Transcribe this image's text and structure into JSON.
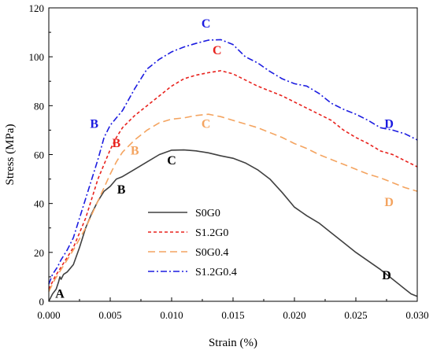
{
  "chart_data": {
    "type": "line",
    "title": "",
    "xlabel": "Strain (%)",
    "ylabel": "Stress (MPa)",
    "xlim": [
      0,
      0.03
    ],
    "ylim": [
      0,
      120
    ],
    "xticks": [
      0.0,
      0.005,
      0.01,
      0.015,
      0.02,
      0.025,
      0.03
    ],
    "xtick_labels": [
      "0.000",
      "0.005",
      "0.010",
      "0.015",
      "0.020",
      "0.025",
      "0.030"
    ],
    "yticks": [
      0,
      20,
      40,
      60,
      80,
      100,
      120
    ],
    "ytick_labels": [
      "0",
      "20",
      "40",
      "60",
      "80",
      "100",
      "120"
    ],
    "grid": false,
    "legend_position": "bottom-center",
    "series": [
      {
        "name": "S0G0",
        "color": "#404040",
        "dash": "solid",
        "points": [
          [
            0,
            0
          ],
          [
            0.0003,
            3
          ],
          [
            0.0006,
            5
          ],
          [
            0.0008,
            8
          ],
          [
            0.0009,
            10
          ],
          [
            0.001,
            9
          ],
          [
            0.0012,
            11
          ],
          [
            0.0015,
            12
          ],
          [
            0.002,
            15
          ],
          [
            0.0025,
            22
          ],
          [
            0.003,
            30
          ],
          [
            0.0035,
            36
          ],
          [
            0.004,
            41
          ],
          [
            0.0045,
            45
          ],
          [
            0.005,
            47
          ],
          [
            0.0055,
            50
          ],
          [
            0.006,
            51
          ],
          [
            0.007,
            54
          ],
          [
            0.008,
            57
          ],
          [
            0.009,
            60
          ],
          [
            0.01,
            61.8
          ],
          [
            0.011,
            61.9
          ],
          [
            0.012,
            61.5
          ],
          [
            0.013,
            60.7
          ],
          [
            0.014,
            59.5
          ],
          [
            0.015,
            58.5
          ],
          [
            0.016,
            56.6
          ],
          [
            0.017,
            53.8
          ],
          [
            0.018,
            50
          ],
          [
            0.019,
            44.5
          ],
          [
            0.02,
            38.5
          ],
          [
            0.021,
            35
          ],
          [
            0.022,
            32
          ],
          [
            0.023,
            28
          ],
          [
            0.024,
            24
          ],
          [
            0.025,
            20
          ],
          [
            0.026,
            16.5
          ],
          [
            0.027,
            13
          ],
          [
            0.028,
            9
          ],
          [
            0.029,
            5
          ],
          [
            0.0295,
            3
          ],
          [
            0.03,
            2
          ]
        ]
      },
      {
        "name": "S1.2G0",
        "color": "#e8221d",
        "dash": "short-dash",
        "points": [
          [
            0,
            5
          ],
          [
            0.0005,
            10
          ],
          [
            0.001,
            14
          ],
          [
            0.0015,
            18
          ],
          [
            0.002,
            22
          ],
          [
            0.003,
            34
          ],
          [
            0.004,
            50
          ],
          [
            0.005,
            62
          ],
          [
            0.0055,
            67
          ],
          [
            0.006,
            71
          ],
          [
            0.007,
            76
          ],
          [
            0.008,
            80
          ],
          [
            0.009,
            84
          ],
          [
            0.01,
            88
          ],
          [
            0.011,
            91
          ],
          [
            0.012,
            92.5
          ],
          [
            0.013,
            93.5
          ],
          [
            0.014,
            94.3
          ],
          [
            0.015,
            93
          ],
          [
            0.016,
            90.5
          ],
          [
            0.017,
            88
          ],
          [
            0.018,
            86
          ],
          [
            0.019,
            84
          ],
          [
            0.02,
            81.5
          ],
          [
            0.021,
            79
          ],
          [
            0.022,
            76.5
          ],
          [
            0.023,
            74
          ],
          [
            0.024,
            70
          ],
          [
            0.025,
            67
          ],
          [
            0.026,
            64.5
          ],
          [
            0.027,
            61.5
          ],
          [
            0.028,
            60
          ],
          [
            0.029,
            57.5
          ],
          [
            0.03,
            55
          ]
        ]
      },
      {
        "name": "S0G0.4",
        "color": "#f4a460",
        "dash": "long-dash",
        "points": [
          [
            0,
            4
          ],
          [
            0.0005,
            9
          ],
          [
            0.001,
            13
          ],
          [
            0.0015,
            17
          ],
          [
            0.002,
            21
          ],
          [
            0.003,
            30
          ],
          [
            0.004,
            41
          ],
          [
            0.005,
            52
          ],
          [
            0.0055,
            57
          ],
          [
            0.006,
            61
          ],
          [
            0.007,
            66
          ],
          [
            0.008,
            70
          ],
          [
            0.009,
            73
          ],
          [
            0.01,
            74.5
          ],
          [
            0.011,
            75
          ],
          [
            0.012,
            76
          ],
          [
            0.013,
            76.5
          ],
          [
            0.014,
            75.5
          ],
          [
            0.015,
            74
          ],
          [
            0.016,
            72.5
          ],
          [
            0.017,
            71
          ],
          [
            0.018,
            69
          ],
          [
            0.019,
            67
          ],
          [
            0.02,
            64.5
          ],
          [
            0.021,
            62.5
          ],
          [
            0.022,
            60
          ],
          [
            0.023,
            58
          ],
          [
            0.024,
            56
          ],
          [
            0.025,
            54
          ],
          [
            0.026,
            52
          ],
          [
            0.027,
            50.5
          ],
          [
            0.028,
            48.5
          ],
          [
            0.029,
            46.5
          ],
          [
            0.03,
            45
          ]
        ]
      },
      {
        "name": "S1.2G0.4",
        "color": "#1c1ce0",
        "dash": "dash-dot",
        "points": [
          [
            0,
            7
          ],
          [
            0.0003,
            11
          ],
          [
            0.0007,
            14
          ],
          [
            0.001,
            17
          ],
          [
            0.0015,
            21
          ],
          [
            0.002,
            26
          ],
          [
            0.003,
            42
          ],
          [
            0.004,
            58
          ],
          [
            0.0045,
            67
          ],
          [
            0.005,
            72
          ],
          [
            0.0055,
            75
          ],
          [
            0.006,
            78
          ],
          [
            0.007,
            87
          ],
          [
            0.008,
            95
          ],
          [
            0.009,
            99
          ],
          [
            0.01,
            102
          ],
          [
            0.011,
            104
          ],
          [
            0.012,
            105.5
          ],
          [
            0.013,
            106.8
          ],
          [
            0.014,
            107
          ],
          [
            0.015,
            105
          ],
          [
            0.016,
            100
          ],
          [
            0.017,
            97.5
          ],
          [
            0.018,
            94
          ],
          [
            0.019,
            91
          ],
          [
            0.02,
            89
          ],
          [
            0.021,
            88
          ],
          [
            0.022,
            85
          ],
          [
            0.023,
            81
          ],
          [
            0.024,
            78.5
          ],
          [
            0.025,
            76.5
          ],
          [
            0.026,
            74
          ],
          [
            0.027,
            71
          ],
          [
            0.028,
            70
          ],
          [
            0.029,
            68.5
          ],
          [
            0.03,
            66
          ]
        ]
      }
    ],
    "annotations": [
      {
        "text": "A",
        "x": 0.0009,
        "y": 1.5,
        "color": "#000000"
      },
      {
        "text": "B",
        "x": 0.0059,
        "y": 44,
        "color": "#000000"
      },
      {
        "text": "C",
        "x": 0.01,
        "y": 56,
        "color": "#000000"
      },
      {
        "text": "D",
        "x": 0.0275,
        "y": 9,
        "color": "#000000"
      },
      {
        "text": "B",
        "x": 0.007,
        "y": 60,
        "color": "#f4a460"
      },
      {
        "text": "C",
        "x": 0.0128,
        "y": 71,
        "color": "#f4a460"
      },
      {
        "text": "D",
        "x": 0.0277,
        "y": 39,
        "color": "#f4a460"
      },
      {
        "text": "B",
        "x": 0.0055,
        "y": 63,
        "color": "#e8221d"
      },
      {
        "text": "C",
        "x": 0.0137,
        "y": 101,
        "color": "#e8221d"
      },
      {
        "text": "B",
        "x": 0.0037,
        "y": 71,
        "color": "#1c1ce0"
      },
      {
        "text": "C",
        "x": 0.0128,
        "y": 112,
        "color": "#1c1ce0"
      },
      {
        "text": "D",
        "x": 0.0277,
        "y": 71,
        "color": "#1c1ce0"
      }
    ]
  }
}
